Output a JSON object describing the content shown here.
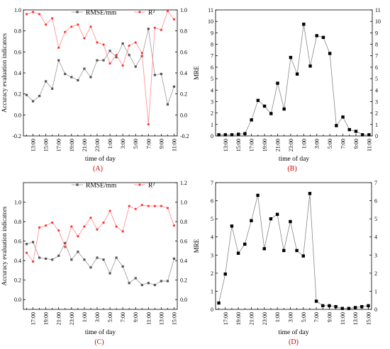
{
  "chart_data": [
    {
      "type": "line",
      "panel_label": "(A)",
      "xlabel": "time of day",
      "ylabel": "Accuracy evaluation indicators",
      "categories": [
        "",
        "13:00",
        "",
        "15:00",
        "",
        "17:00",
        "",
        "19:00",
        "",
        "21:00",
        "",
        "23:00",
        "",
        "1:00",
        "",
        "3:00",
        "",
        "5:00",
        "",
        "7:00",
        "",
        "9:00",
        "",
        "11:00"
      ],
      "ylim": [
        -0.2,
        1.0
      ],
      "yticks": [
        -0.2,
        0.0,
        0.2,
        0.4,
        0.6,
        0.8,
        1.0
      ],
      "y2lim": [
        -0.2,
        1.0
      ],
      "y2ticks": [
        -0.2,
        0.0,
        0.2,
        0.4,
        0.6,
        0.8,
        1.0
      ],
      "legend": "top",
      "series": [
        {
          "name": "RMSE/mm",
          "color": "#555555",
          "marker": "square",
          "axis": "left",
          "values": [
            0.19,
            0.13,
            0.18,
            0.32,
            0.25,
            0.52,
            0.39,
            0.36,
            0.33,
            0.44,
            0.36,
            0.52,
            0.52,
            0.61,
            0.55,
            0.68,
            0.57,
            0.46,
            0.56,
            0.82,
            0.38,
            0.39,
            0.1,
            0.27
          ]
        },
        {
          "name": "R²",
          "color": "#ff3333",
          "marker": "circle",
          "axis": "right",
          "values": [
            0.96,
            0.98,
            0.96,
            0.86,
            0.92,
            0.64,
            0.79,
            0.84,
            0.86,
            0.73,
            0.84,
            0.69,
            0.67,
            0.49,
            0.57,
            0.47,
            0.66,
            0.69,
            0.59,
            -0.09,
            0.83,
            0.81,
            0.99,
            0.91
          ]
        }
      ]
    },
    {
      "type": "line",
      "panel_label": "(B)",
      "xlabel": "time of day",
      "ylabel": "MRE",
      "categories": [
        "",
        "13:00",
        "",
        "15:00",
        "",
        "17:00",
        "",
        "19:00",
        "",
        "21:00",
        "",
        "23:00",
        "",
        "1:00",
        "",
        "3:00",
        "",
        "5:00",
        "",
        "7:00",
        "",
        "9:00",
        "",
        "11:00"
      ],
      "ylim": [
        0,
        11
      ],
      "yticks": [
        0,
        1,
        2,
        3,
        4,
        5,
        6,
        7,
        8,
        9,
        10,
        11
      ],
      "series": [
        {
          "name": "MRE",
          "color": "#000000",
          "marker": "square",
          "axis": "left",
          "values": [
            0.1,
            0.1,
            0.1,
            0.15,
            0.2,
            1.4,
            3.1,
            2.6,
            1.95,
            4.6,
            2.35,
            6.85,
            5.4,
            9.75,
            6.1,
            8.75,
            8.6,
            7.2,
            0.9,
            1.65,
            0.55,
            0.4,
            0.1,
            0.1
          ]
        }
      ]
    },
    {
      "type": "line",
      "panel_label": "(C)",
      "xlabel": "time of day",
      "ylabel": "Accuracy evaluation indicators",
      "categories": [
        "",
        "17:00",
        "",
        "19:00",
        "",
        "21:00",
        "",
        "23:00",
        "",
        "1:00",
        "",
        "3:00",
        "",
        "5:00",
        "",
        "7:00",
        "",
        "9:00",
        "",
        "11:00",
        "",
        "13:00",
        "",
        "15:00"
      ],
      "ylim": [
        -0.1,
        1.2
      ],
      "yticks": [
        0.0,
        0.2,
        0.4,
        0.6,
        0.8,
        1.0
      ],
      "y2lim": [
        -0.1,
        1.2
      ],
      "y2ticks": [
        0.0,
        0.2,
        0.4,
        0.6,
        0.8,
        1.0,
        1.2
      ],
      "legend": "top",
      "series": [
        {
          "name": "RMSE/mm",
          "color": "#555555",
          "marker": "square",
          "axis": "left",
          "values": [
            0.57,
            0.59,
            0.43,
            0.42,
            0.41,
            0.45,
            0.58,
            0.41,
            0.49,
            0.41,
            0.33,
            0.43,
            0.41,
            0.27,
            0.43,
            0.34,
            0.17,
            0.22,
            0.15,
            0.17,
            0.15,
            0.19,
            0.19,
            0.42
          ]
        },
        {
          "name": "R²",
          "color": "#ff3333",
          "marker": "circle",
          "axis": "right",
          "values": [
            0.48,
            0.39,
            0.74,
            0.76,
            0.79,
            0.71,
            0.54,
            0.75,
            0.65,
            0.75,
            0.84,
            0.72,
            0.79,
            0.91,
            0.75,
            0.7,
            0.96,
            0.93,
            0.97,
            0.96,
            0.96,
            0.96,
            0.94,
            0.76
          ]
        }
      ]
    },
    {
      "type": "line",
      "panel_label": "(D)",
      "xlabel": "time of day",
      "ylabel": "MRE",
      "categories": [
        "",
        "17:00",
        "",
        "19:00",
        "",
        "21:00",
        "",
        "23:00",
        "",
        "1:00",
        "",
        "3:00",
        "",
        "5:00",
        "",
        "7:00",
        "",
        "9:00",
        "",
        "11:00",
        "",
        "13:00",
        "",
        "15:00"
      ],
      "ylim": [
        0,
        7
      ],
      "yticks": [
        0,
        1,
        2,
        3,
        4,
        5,
        6,
        7
      ],
      "series": [
        {
          "name": "MRE",
          "color": "#000000",
          "marker": "square",
          "axis": "left",
          "values": [
            0.35,
            1.95,
            4.6,
            3.1,
            3.6,
            4.9,
            6.3,
            3.35,
            5.0,
            5.25,
            3.25,
            4.85,
            3.25,
            2.95,
            6.4,
            0.45,
            0.2,
            0.2,
            0.15,
            0.05,
            0.05,
            0.1,
            0.15,
            0.2
          ]
        }
      ]
    }
  ]
}
